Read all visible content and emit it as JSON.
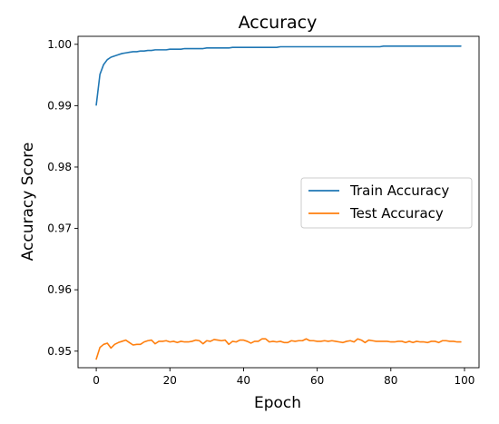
{
  "chart_data": {
    "type": "line",
    "title": "Accuracy",
    "xlabel": "Epoch",
    "ylabel": "Accuracy Score",
    "xlim": [
      -4.95,
      103.95
    ],
    "ylim": [
      0.9473,
      1.0013
    ],
    "xticks": [
      0,
      20,
      40,
      60,
      80,
      100
    ],
    "yticks": [
      0.95,
      0.96,
      0.97,
      0.98,
      0.99,
      1.0
    ],
    "xtick_labels": [
      "0",
      "20",
      "40",
      "60",
      "80",
      "100"
    ],
    "ytick_labels": [
      "0.95",
      "0.96",
      "0.97",
      "0.98",
      "0.99",
      "1.00"
    ],
    "grid": false,
    "legend_position": "center-right",
    "series": [
      {
        "name": "Train Accuracy",
        "color": "#1f77b4",
        "values": [
          0.9901,
          0.9951,
          0.9967,
          0.9975,
          0.9979,
          0.9981,
          0.9983,
          0.9985,
          0.9986,
          0.9987,
          0.9988,
          0.9988,
          0.9989,
          0.9989,
          0.999,
          0.999,
          0.9991,
          0.9991,
          0.9991,
          0.9991,
          0.9992,
          0.9992,
          0.9992,
          0.9992,
          0.9993,
          0.9993,
          0.9993,
          0.9993,
          0.9993,
          0.9993,
          0.9994,
          0.9994,
          0.9994,
          0.9994,
          0.9994,
          0.9994,
          0.9994,
          0.9995,
          0.9995,
          0.9995,
          0.9995,
          0.9995,
          0.9995,
          0.9995,
          0.9995,
          0.9995,
          0.9995,
          0.9995,
          0.9995,
          0.9995,
          0.9996,
          0.9996,
          0.9996,
          0.9996,
          0.9996,
          0.9996,
          0.9996,
          0.9996,
          0.9996,
          0.9996,
          0.9996,
          0.9996,
          0.9996,
          0.9996,
          0.9996,
          0.9996,
          0.9996,
          0.9996,
          0.9996,
          0.9996,
          0.9996,
          0.9996,
          0.9996,
          0.9996,
          0.9996,
          0.9996,
          0.9996,
          0.9996,
          0.9997,
          0.9997,
          0.9997,
          0.9997,
          0.9997,
          0.9997,
          0.9997,
          0.9997,
          0.9997,
          0.9997,
          0.9997,
          0.9997,
          0.9997,
          0.9997,
          0.9997,
          0.9997,
          0.9997,
          0.9997,
          0.9997,
          0.9997,
          0.9997,
          0.9997
        ]
      },
      {
        "name": "Test Accuracy",
        "color": "#ff7f0e",
        "values": [
          0.9487,
          0.9506,
          0.9511,
          0.9513,
          0.9505,
          0.9511,
          0.9514,
          0.9516,
          0.9518,
          0.9514,
          0.951,
          0.9511,
          0.9511,
          0.9515,
          0.9517,
          0.9518,
          0.9512,
          0.9516,
          0.9516,
          0.9517,
          0.9515,
          0.9516,
          0.9514,
          0.9516,
          0.9515,
          0.9515,
          0.9516,
          0.9518,
          0.9517,
          0.9512,
          0.9517,
          0.9516,
          0.9519,
          0.9518,
          0.9517,
          0.9518,
          0.9511,
          0.9516,
          0.9515,
          0.9518,
          0.9518,
          0.9516,
          0.9513,
          0.9516,
          0.9516,
          0.952,
          0.952,
          0.9515,
          0.9516,
          0.9515,
          0.9516,
          0.9514,
          0.9514,
          0.9517,
          0.9516,
          0.9517,
          0.9517,
          0.952,
          0.9517,
          0.9517,
          0.9516,
          0.9516,
          0.9517,
          0.9516,
          0.9517,
          0.9516,
          0.9515,
          0.9514,
          0.9516,
          0.9517,
          0.9515,
          0.952,
          0.9518,
          0.9514,
          0.9518,
          0.9517,
          0.9516,
          0.9516,
          0.9516,
          0.9516,
          0.9515,
          0.9515,
          0.9516,
          0.9516,
          0.9514,
          0.9516,
          0.9514,
          0.9516,
          0.9515,
          0.9515,
          0.9514,
          0.9516,
          0.9516,
          0.9514,
          0.9517,
          0.9517,
          0.9516,
          0.9516,
          0.9515,
          0.9515
        ]
      }
    ]
  }
}
